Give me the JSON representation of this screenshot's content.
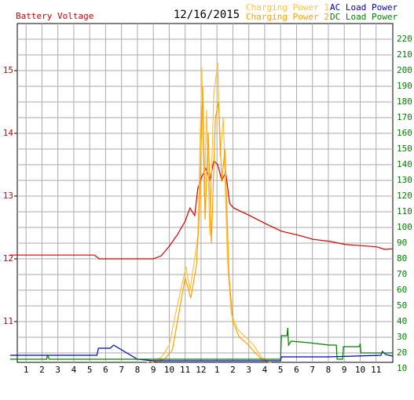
{
  "chart_data": {
    "type": "line",
    "title": "12/16/2015",
    "xlim": [
      0.45,
      24.05
    ],
    "xticks": [
      {
        "value": 1,
        "label": "1"
      },
      {
        "value": 2,
        "label": "2"
      },
      {
        "value": 3,
        "label": "3"
      },
      {
        "value": 4,
        "label": "4"
      },
      {
        "value": 5,
        "label": "5"
      },
      {
        "value": 6,
        "label": "6"
      },
      {
        "value": 7,
        "label": "7"
      },
      {
        "value": 8,
        "label": "8"
      },
      {
        "value": 9,
        "label": "9"
      },
      {
        "value": 10,
        "label": "10"
      },
      {
        "value": 11,
        "label": "11"
      },
      {
        "value": 12,
        "label": "12"
      },
      {
        "value": 13,
        "label": "1"
      },
      {
        "value": 14,
        "label": "2"
      },
      {
        "value": 15,
        "label": "3"
      },
      {
        "value": 16,
        "label": "4"
      },
      {
        "value": 17,
        "label": "5"
      },
      {
        "value": 18,
        "label": "6"
      },
      {
        "value": 19,
        "label": "7"
      },
      {
        "value": 20,
        "label": "8"
      },
      {
        "value": 21,
        "label": "9"
      },
      {
        "value": 22,
        "label": "10"
      },
      {
        "value": 23,
        "label": "11"
      }
    ],
    "ylim": [
      10.35,
      15.75
    ],
    "yticks": [
      11,
      12,
      13,
      14,
      15
    ],
    "y2lim": [
      14,
      230
    ],
    "y2ticks": [
      10,
      20,
      30,
      40,
      50,
      60,
      70,
      80,
      90,
      100,
      110,
      120,
      130,
      140,
      150,
      160,
      170,
      180,
      190,
      200,
      210,
      220
    ],
    "grid": true,
    "series": [
      {
        "name": "Battery Voltage",
        "color": "#d00000",
        "axis": "y",
        "x": [
          0,
          5.3,
          5.6,
          9.0,
          9.5,
          10.0,
          10.5,
          11.0,
          11.3,
          11.6,
          11.8,
          12.05,
          12.3,
          12.55,
          12.8,
          13.05,
          13.3,
          13.55,
          13.8,
          14.05,
          15.05,
          16.05,
          17.05,
          18.05,
          19.05,
          20.05,
          21.05,
          22.05,
          23.05,
          23.55,
          24.05
        ],
        "values": [
          12.06,
          12.06,
          12.0,
          12.0,
          12.05,
          12.2,
          12.38,
          12.6,
          12.81,
          12.69,
          13.13,
          13.31,
          13.44,
          13.25,
          13.56,
          13.5,
          13.25,
          13.38,
          12.88,
          12.81,
          12.69,
          12.56,
          12.44,
          12.38,
          12.31,
          12.28,
          12.23,
          12.21,
          12.19,
          12.15,
          12.16
        ]
      },
      {
        "name": "Charging Power 1",
        "color": "#ffc040",
        "axis": "y2",
        "x": [
          8.6,
          9.5,
          10.0,
          10.5,
          11.05,
          11.3,
          11.6,
          11.8,
          12.05,
          12.2,
          12.35,
          12.55,
          12.8,
          13.05,
          13.2,
          13.4,
          13.65,
          13.9,
          14.3,
          14.8,
          15.3,
          15.8,
          16.3
        ],
        "values": [
          14,
          17,
          25,
          50,
          75,
          60,
          80,
          95,
          202,
          120,
          175,
          95,
          185,
          205,
          145,
          170,
          80,
          45,
          35,
          30,
          25,
          17,
          14
        ]
      },
      {
        "name": "Charging Power 2",
        "color": "#ffa000",
        "axis": "y2",
        "x": [
          8.9,
          9.7,
          10.2,
          10.6,
          11.0,
          11.35,
          11.7,
          11.9,
          12.1,
          12.25,
          12.45,
          12.65,
          12.9,
          13.1,
          13.3,
          13.5,
          13.75,
          14.0,
          14.4,
          14.9,
          15.4,
          15.9,
          16.4
        ],
        "values": [
          14,
          16,
          22,
          45,
          68,
          55,
          75,
          110,
          190,
          105,
          160,
          90,
          170,
          180,
          130,
          150,
          70,
          40,
          30,
          26,
          20,
          15,
          14
        ]
      },
      {
        "name": "AC Load Power",
        "color": "#0000c0",
        "axis": "y2",
        "x": [
          0,
          5.45,
          5.55,
          6.3,
          6.5,
          7.0,
          7.5,
          8.0,
          9.0,
          17.0,
          17.05,
          20,
          23.3,
          23.4,
          23.6,
          24.05
        ],
        "values": [
          18.5,
          18.5,
          23,
          23,
          25,
          22,
          19,
          16,
          15,
          15,
          17.5,
          17.5,
          18.5,
          21,
          19,
          18
        ]
      },
      {
        "name": "DC Load Power",
        "color": "#008000",
        "axis": "y2",
        "x": [
          0,
          2.3,
          2.35,
          2.45,
          17.0,
          17.05,
          17.4,
          17.45,
          17.5,
          17.65,
          18.8,
          20.05,
          20.5,
          20.55,
          20.9,
          20.95,
          21.95,
          22.0,
          22.05,
          24.05
        ],
        "values": [
          16,
          16,
          19,
          16,
          16,
          31,
          31,
          36,
          25,
          27.5,
          26.5,
          25,
          25,
          16,
          16,
          24,
          24,
          26,
          20,
          20
        ]
      }
    ]
  }
}
